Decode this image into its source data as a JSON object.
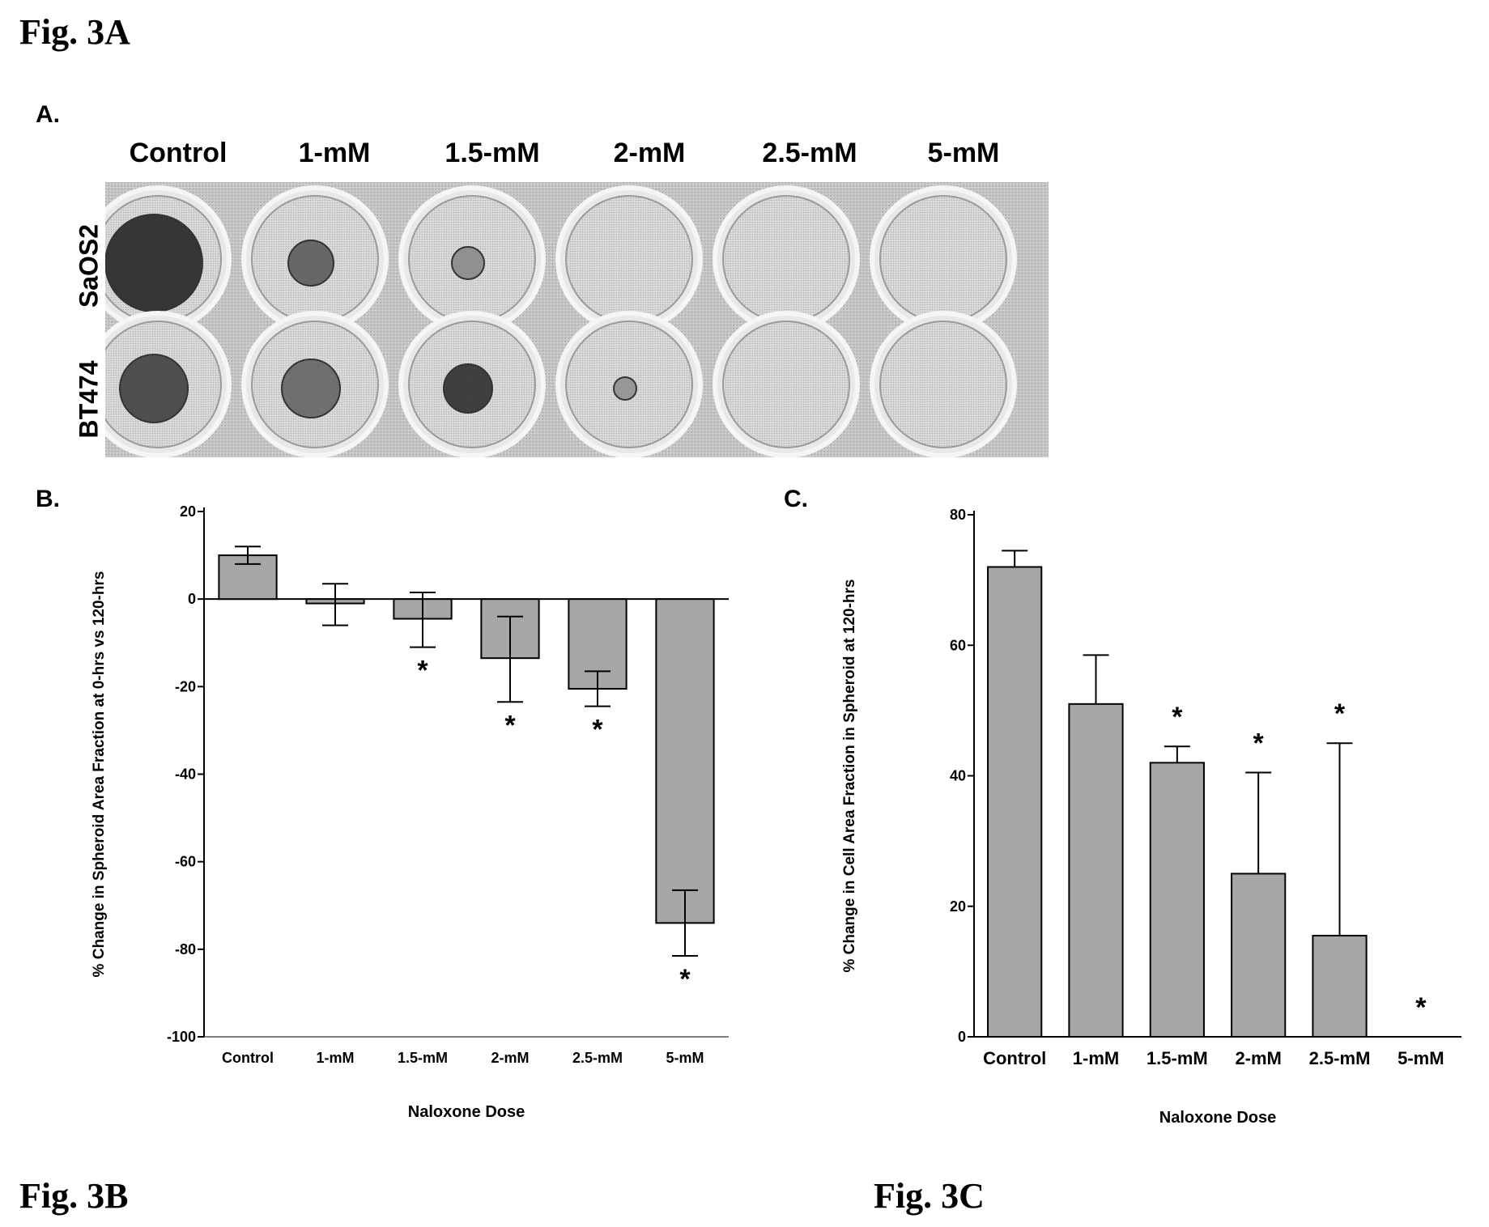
{
  "figure_titles": {
    "a": "Fig. 3A",
    "b": "Fig. 3B",
    "c": "Fig. 3C"
  },
  "panel_letters": {
    "a": "A.",
    "b": "B.",
    "c": "C."
  },
  "panel_a": {
    "dose_headers": [
      "Control",
      "1-mM",
      "1.5-mM",
      "2-mM",
      "2.5-mM",
      "5-mM"
    ],
    "cell_lines": [
      "SaOS2",
      "BT474"
    ]
  },
  "chart_data": [
    {
      "type": "bar",
      "panel": "B.",
      "categories": [
        "Control",
        "1-mM",
        "1.5-mM",
        "2-mM",
        "2.5-mM",
        "5-mM"
      ],
      "values": [
        10,
        -1,
        -4.5,
        -13.5,
        -20.5,
        -74
      ],
      "error_low": [
        8,
        -6,
        -11,
        -23.5,
        -24.5,
        -81.5
      ],
      "error_high": [
        12,
        3.5,
        1.5,
        -4,
        -16.5,
        -66.5
      ],
      "significant": [
        false,
        false,
        true,
        true,
        true,
        true
      ],
      "xlabel": "Naloxone Dose",
      "ylabel": "% Change in Spheroid Area Fraction at 0-hrs vs 120-hrs",
      "ylim": [
        -100,
        20
      ],
      "yticks": [
        20,
        0,
        -20,
        -40,
        -60,
        -80,
        -100
      ],
      "asterisk": "*",
      "bar_color": "#a6a6a6"
    },
    {
      "type": "bar",
      "panel": "C.",
      "categories": [
        "Control",
        "1-mM",
        "1.5-mM",
        "2-mM",
        "2.5-mM",
        "5-mM"
      ],
      "values": [
        72,
        51,
        42,
        25,
        15.5,
        0
      ],
      "error_high": [
        74.5,
        58.5,
        44.5,
        40.5,
        45,
        0
      ],
      "significant": [
        false,
        false,
        true,
        true,
        true,
        true
      ],
      "xlabel": "Naloxone Dose",
      "ylabel": "% Change in Cell Area Fraction in Spheroid at 120-hrs",
      "ylim": [
        0,
        80
      ],
      "yticks": [
        80,
        60,
        40,
        20,
        0
      ],
      "asterisk": "*",
      "bar_color": "#a6a6a6"
    }
  ]
}
